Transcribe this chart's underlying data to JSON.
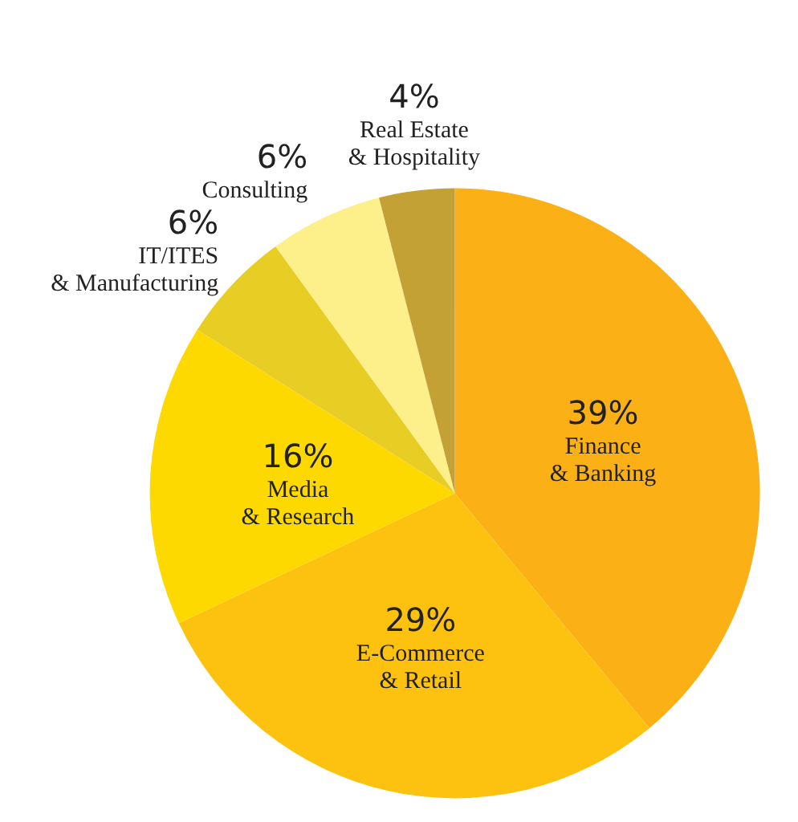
{
  "chart_data": {
    "type": "pie",
    "categories": [
      "Finance & Banking",
      "E-Commerce & Retail",
      "Media & Research",
      "IT/ITES & Manufacturing",
      "Consulting",
      "Real Estate & Hospitality"
    ],
    "values": [
      39,
      29,
      16,
      6,
      6,
      4
    ],
    "colors": [
      "#fbb116",
      "#fdc20f",
      "#fdd900",
      "#e8cd25",
      "#fdf08a",
      "#c4a135"
    ],
    "value_labels": [
      "39%",
      "29%",
      "16%",
      "6%",
      "6%",
      "4%"
    ],
    "legend": false
  }
}
